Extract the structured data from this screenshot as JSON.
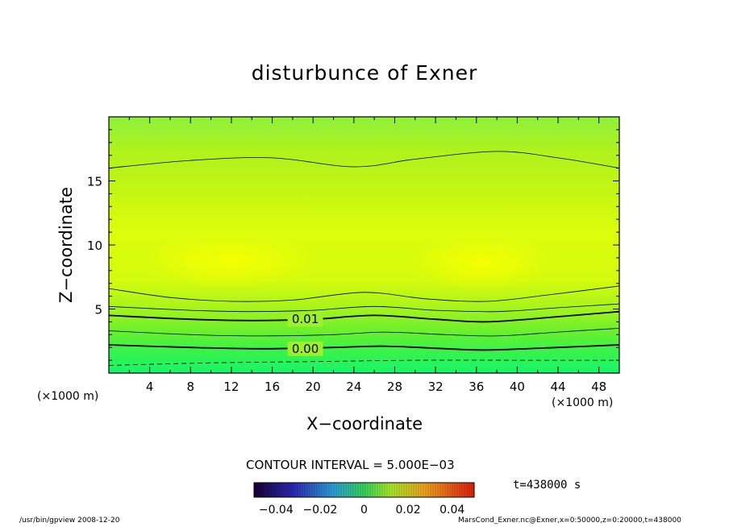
{
  "chart_data": {
    "type": "heatmap",
    "title": "disturbunce of Exner",
    "xlabel": "X−coordinate",
    "ylabel": "Z−coordinate",
    "x_unit": "(×1000 m)",
    "xlim": [
      0,
      50
    ],
    "ylim": [
      0,
      20
    ],
    "x_ticks": [
      4,
      8,
      12,
      16,
      20,
      24,
      28,
      32,
      36,
      40,
      44,
      48
    ],
    "y_ticks": [
      5,
      10,
      15
    ],
    "contour_interval_label": "CONTOUR INTERVAL = 5.000E−03",
    "contour_labels": [
      {
        "text": "0.01",
        "x": 17.5,
        "y": 4.2
      },
      {
        "text": "0.00",
        "x": 17.5,
        "y": 1.9
      }
    ],
    "contours": [
      {
        "level": 0.025,
        "style": "thin",
        "points": [
          [
            0,
            16.0
          ],
          [
            8,
            16.6
          ],
          [
            16,
            16.8
          ],
          [
            24,
            16.1
          ],
          [
            30,
            16.7
          ],
          [
            38,
            17.3
          ],
          [
            44,
            16.8
          ],
          [
            50,
            16.0
          ]
        ]
      },
      {
        "level": 0.025,
        "style": "thin",
        "points": [
          [
            0,
            6.6
          ],
          [
            6,
            5.9
          ],
          [
            12,
            5.6
          ],
          [
            18,
            5.7
          ],
          [
            25,
            6.3
          ],
          [
            31,
            5.8
          ],
          [
            37,
            5.6
          ],
          [
            43,
            6.1
          ],
          [
            50,
            6.8
          ]
        ]
      },
      {
        "level": 0.015,
        "style": "thin",
        "points": [
          [
            0,
            5.2
          ],
          [
            8,
            4.9
          ],
          [
            14,
            4.8
          ],
          [
            20,
            4.9
          ],
          [
            26,
            5.2
          ],
          [
            32,
            4.9
          ],
          [
            38,
            4.8
          ],
          [
            44,
            5.1
          ],
          [
            50,
            5.4
          ]
        ]
      },
      {
        "level": 0.01,
        "style": "bold",
        "points": [
          [
            0,
            4.5
          ],
          [
            8,
            4.2
          ],
          [
            14,
            4.1
          ],
          [
            20,
            4.2
          ],
          [
            26,
            4.5
          ],
          [
            32,
            4.2
          ],
          [
            37,
            4.0
          ],
          [
            44,
            4.4
          ],
          [
            50,
            4.8
          ]
        ]
      },
      {
        "level": 0.005,
        "style": "thin",
        "points": [
          [
            0,
            3.3
          ],
          [
            8,
            3.0
          ],
          [
            15,
            2.9
          ],
          [
            22,
            3.0
          ],
          [
            27,
            3.2
          ],
          [
            33,
            3.0
          ],
          [
            38,
            2.9
          ],
          [
            44,
            3.2
          ],
          [
            50,
            3.5
          ]
        ]
      },
      {
        "level": 0.0,
        "style": "bold",
        "points": [
          [
            0,
            2.2
          ],
          [
            8,
            2.0
          ],
          [
            15,
            1.9
          ],
          [
            22,
            2.0
          ],
          [
            27,
            2.1
          ],
          [
            33,
            1.9
          ],
          [
            37,
            1.8
          ],
          [
            44,
            2.0
          ],
          [
            50,
            2.2
          ]
        ]
      },
      {
        "level": -0.005,
        "style": "dashed",
        "points": [
          [
            0,
            0.6
          ],
          [
            10,
            0.8
          ],
          [
            20,
            0.9
          ],
          [
            30,
            1.0
          ],
          [
            40,
            1.0
          ],
          [
            50,
            1.0
          ]
        ]
      }
    ],
    "colorbar": {
      "ticks": [
        "−0.04",
        "−0.02",
        "0",
        "0.02",
        "0.04"
      ],
      "range": [
        -0.05,
        0.05
      ]
    }
  },
  "annotations": {
    "time": "t=438000 s",
    "footer_left": "/usr/bin/gpview   2008-12-20",
    "footer_right": "MarsCond_Exner.nc@Exner,x=0:50000,z=0:20000,t=438000"
  },
  "colors": {
    "plot_bottom": "#1ef564",
    "plot_mid": "#d8ff10",
    "plot_center": "#f4ff00",
    "plot_top": "#9cf436",
    "line": "#000000"
  }
}
